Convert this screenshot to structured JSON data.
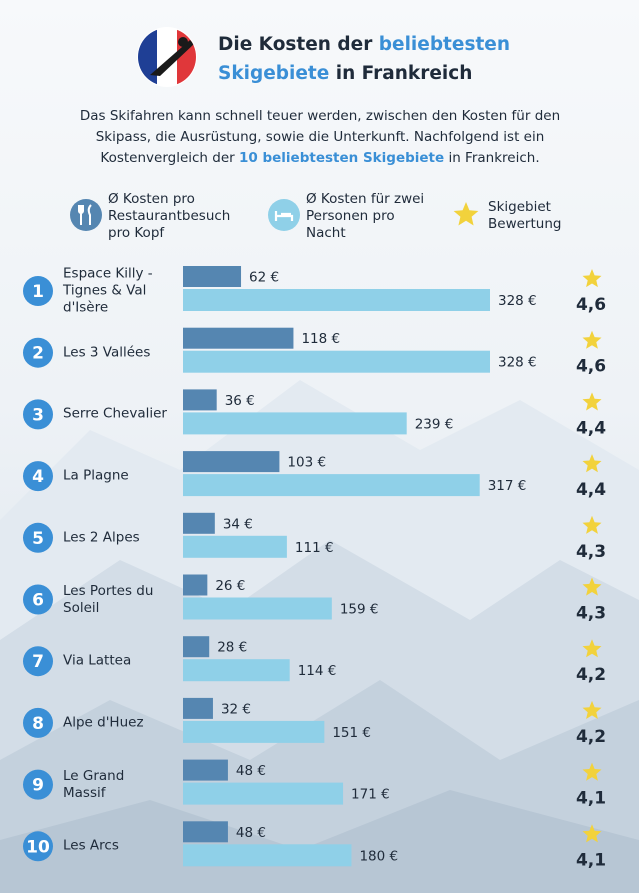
{
  "chart_data": {
    "type": "bar",
    "orientation": "horizontal",
    "title": [
      {
        "text": "Die Kosten der",
        "highlight": false
      },
      {
        "text": "beliebtesten",
        "highlight": true
      },
      {
        "text": "Skigebiete",
        "highlight": true
      },
      {
        "text": "in Frankreich",
        "highlight": false
      }
    ],
    "subtitle": [
      {
        "text": "Das Skifahren kann schnell teuer werden, zwischen den Kosten für den Skipass, die Ausrüstung, sowie die Unterkunft. Nachfolgend ist ein Kostenvergleich der ",
        "highlight": false
      },
      {
        "text": "10 beliebtesten Skigebiete",
        "highlight": true
      },
      {
        "text": " in Frankreich.",
        "highlight": false
      }
    ],
    "ranks": [
      1,
      2,
      3,
      4,
      5,
      6,
      7,
      8,
      9,
      10
    ],
    "categories": [
      "Espace Killy - Tignes & Val d'Isère",
      "Les 3 Vallées",
      "Serre Chevalier",
      "La Plagne",
      "Les 2 Alpes",
      "Les Portes du Soleil",
      "Via Lattea",
      "Alpe d'Huez",
      "Le Grand Massif",
      "Les Arcs"
    ],
    "series": [
      {
        "name": "Ø Kosten pro Restaurantbesuch pro Kopf",
        "color": "#5586b1",
        "values": [
          62,
          118,
          36,
          103,
          34,
          26,
          28,
          32,
          48,
          48
        ],
        "value_labels": [
          "62 €",
          "118 €",
          "36 €",
          "103 €",
          "34 €",
          "26 €",
          "28 €",
          "32 €",
          "48 €",
          "48 €"
        ]
      },
      {
        "name": "Ø Kosten für zwei Personen pro Nacht",
        "color": "#8fd0e8",
        "values": [
          328,
          328,
          239,
          317,
          111,
          159,
          114,
          151,
          171,
          180
        ],
        "value_labels": [
          "328 €",
          "328 €",
          "239 €",
          "317 €",
          "111 €",
          "159 €",
          "114 €",
          "151 €",
          "171 €",
          "180 €"
        ]
      }
    ],
    "ratings": {
      "name": "Skigebiet Bewertung",
      "color": "#f2d23c",
      "values": [
        4.6,
        4.6,
        4.4,
        4.4,
        4.3,
        4.3,
        4.2,
        4.2,
        4.1,
        4.1
      ],
      "value_labels": [
        "4,6",
        "4,6",
        "4,4",
        "4,4",
        "4,3",
        "4,3",
        "4,2",
        "4,2",
        "4,1",
        "4,1"
      ]
    },
    "highlight_color": "#3a8fd6"
  }
}
